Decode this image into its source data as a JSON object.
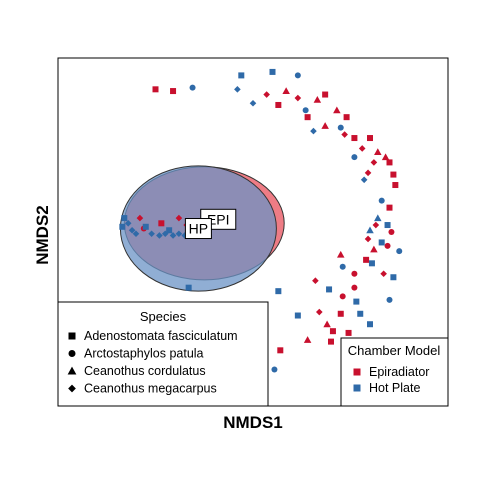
{
  "chart_data": {
    "type": "scatter",
    "xlabel": "NMDS1",
    "ylabel": "NMDS2",
    "xlim": [
      -1.0,
      1.0
    ],
    "ylim": [
      -1.0,
      1.0
    ],
    "grid": false,
    "colors": {
      "Epiradiator": "#c8102e",
      "Hot Plate": "#2f6aa8"
    },
    "series": [
      {
        "name": "Epiradiator",
        "color": "#c8102e",
        "ellipse": {
          "cx": -0.25,
          "cy": 0.05,
          "rx": 0.41,
          "ry": 0.325,
          "fill": "#e8505c"
        },
        "centroid_label": "EPI",
        "points": [
          {
            "x": -0.5,
            "y": 0.82,
            "shape": "square"
          },
          {
            "x": -0.41,
            "y": 0.81,
            "shape": "square"
          },
          {
            "x": 0.07,
            "y": 0.79,
            "shape": "diamond"
          },
          {
            "x": 0.17,
            "y": 0.81,
            "shape": "triangle"
          },
          {
            "x": 0.23,
            "y": 0.77,
            "shape": "diamond"
          },
          {
            "x": 0.13,
            "y": 0.73,
            "shape": "square"
          },
          {
            "x": 0.33,
            "y": 0.76,
            "shape": "triangle"
          },
          {
            "x": 0.37,
            "y": 0.79,
            "shape": "square"
          },
          {
            "x": 0.28,
            "y": 0.66,
            "shape": "square"
          },
          {
            "x": 0.43,
            "y": 0.7,
            "shape": "triangle"
          },
          {
            "x": 0.48,
            "y": 0.66,
            "shape": "square"
          },
          {
            "x": 0.37,
            "y": 0.61,
            "shape": "triangle"
          },
          {
            "x": 0.47,
            "y": 0.56,
            "shape": "diamond"
          },
          {
            "x": 0.52,
            "y": 0.54,
            "shape": "square"
          },
          {
            "x": 0.6,
            "y": 0.54,
            "shape": "square"
          },
          {
            "x": 0.56,
            "y": 0.48,
            "shape": "diamond"
          },
          {
            "x": 0.64,
            "y": 0.46,
            "shape": "triangle"
          },
          {
            "x": 0.68,
            "y": 0.43,
            "shape": "triangle"
          },
          {
            "x": 0.7,
            "y": 0.4,
            "shape": "square"
          },
          {
            "x": 0.62,
            "y": 0.4,
            "shape": "diamond"
          },
          {
            "x": 0.59,
            "y": 0.34,
            "shape": "diamond"
          },
          {
            "x": 0.72,
            "y": 0.33,
            "shape": "square"
          },
          {
            "x": 0.73,
            "y": 0.27,
            "shape": "square"
          },
          {
            "x": 0.7,
            "y": 0.14,
            "shape": "square"
          },
          {
            "x": 0.63,
            "y": 0.04,
            "shape": "diamond"
          },
          {
            "x": 0.71,
            "y": 0.0,
            "shape": "circle"
          },
          {
            "x": 0.59,
            "y": -0.04,
            "shape": "diamond"
          },
          {
            "x": 0.69,
            "y": -0.08,
            "shape": "circle"
          },
          {
            "x": 0.62,
            "y": -0.1,
            "shape": "triangle"
          },
          {
            "x": 0.45,
            "y": -0.13,
            "shape": "triangle"
          },
          {
            "x": 0.58,
            "y": -0.16,
            "shape": "square"
          },
          {
            "x": 0.52,
            "y": -0.24,
            "shape": "circle"
          },
          {
            "x": 0.67,
            "y": -0.24,
            "shape": "diamond"
          },
          {
            "x": 0.32,
            "y": -0.28,
            "shape": "diamond"
          },
          {
            "x": 0.52,
            "y": -0.32,
            "shape": "circle"
          },
          {
            "x": 0.46,
            "y": -0.37,
            "shape": "circle"
          },
          {
            "x": 0.34,
            "y": -0.46,
            "shape": "diamond"
          },
          {
            "x": 0.45,
            "y": -0.47,
            "shape": "square"
          },
          {
            "x": 0.38,
            "y": -0.53,
            "shape": "triangle"
          },
          {
            "x": 0.41,
            "y": -0.57,
            "shape": "square"
          },
          {
            "x": 0.49,
            "y": -0.58,
            "shape": "square"
          },
          {
            "x": 0.28,
            "y": -0.62,
            "shape": "triangle"
          },
          {
            "x": 0.4,
            "y": -0.63,
            "shape": "square"
          },
          {
            "x": 0.14,
            "y": -0.68,
            "shape": "square"
          },
          {
            "x": 0.02,
            "y": -0.68,
            "shape": "square"
          },
          {
            "x": -0.38,
            "y": 0.08,
            "shape": "diamond"
          },
          {
            "x": -0.34,
            "y": 0.04,
            "shape": "diamond"
          },
          {
            "x": -0.3,
            "y": 0.02,
            "shape": "diamond"
          },
          {
            "x": -0.56,
            "y": 0.02,
            "shape": "circle"
          },
          {
            "x": -0.58,
            "y": 0.08,
            "shape": "diamond"
          },
          {
            "x": -0.47,
            "y": 0.05,
            "shape": "square"
          }
        ]
      },
      {
        "name": "Hot Plate",
        "color": "#2f6aa8",
        "ellipse": {
          "cx": -0.28,
          "cy": 0.02,
          "rx": 0.4,
          "ry": 0.36,
          "fill": "#6b93c6"
        },
        "centroid_label": "HP",
        "points": [
          {
            "x": -0.06,
            "y": 0.9,
            "shape": "square"
          },
          {
            "x": 0.1,
            "y": 0.92,
            "shape": "square"
          },
          {
            "x": 0.23,
            "y": 0.9,
            "shape": "circle"
          },
          {
            "x": -0.31,
            "y": 0.83,
            "shape": "circle"
          },
          {
            "x": -0.08,
            "y": 0.82,
            "shape": "diamond"
          },
          {
            "x": 0.0,
            "y": 0.74,
            "shape": "diamond"
          },
          {
            "x": 0.27,
            "y": 0.7,
            "shape": "circle"
          },
          {
            "x": 0.45,
            "y": 0.6,
            "shape": "circle"
          },
          {
            "x": 0.31,
            "y": 0.58,
            "shape": "diamond"
          },
          {
            "x": 0.52,
            "y": 0.43,
            "shape": "circle"
          },
          {
            "x": 0.57,
            "y": 0.3,
            "shape": "diamond"
          },
          {
            "x": 0.66,
            "y": 0.18,
            "shape": "circle"
          },
          {
            "x": 0.64,
            "y": 0.08,
            "shape": "triangle"
          },
          {
            "x": 0.6,
            "y": 0.01,
            "shape": "triangle"
          },
          {
            "x": 0.69,
            "y": 0.04,
            "shape": "square"
          },
          {
            "x": 0.66,
            "y": -0.06,
            "shape": "square"
          },
          {
            "x": 0.75,
            "y": -0.11,
            "shape": "circle"
          },
          {
            "x": 0.61,
            "y": -0.18,
            "shape": "square"
          },
          {
            "x": 0.46,
            "y": -0.2,
            "shape": "circle"
          },
          {
            "x": 0.72,
            "y": -0.26,
            "shape": "square"
          },
          {
            "x": 0.39,
            "y": -0.33,
            "shape": "square"
          },
          {
            "x": 0.53,
            "y": -0.4,
            "shape": "square"
          },
          {
            "x": 0.55,
            "y": -0.47,
            "shape": "square"
          },
          {
            "x": 0.6,
            "y": -0.53,
            "shape": "square"
          },
          {
            "x": 0.7,
            "y": -0.39,
            "shape": "circle"
          },
          {
            "x": 0.13,
            "y": -0.34,
            "shape": "square"
          },
          {
            "x": 0.23,
            "y": -0.48,
            "shape": "square"
          },
          {
            "x": -0.33,
            "y": -0.32,
            "shape": "square"
          },
          {
            "x": 0.11,
            "y": -0.79,
            "shape": "circle"
          },
          {
            "x": -0.1,
            "y": -0.8,
            "shape": "circle"
          },
          {
            "x": -0.66,
            "y": 0.08,
            "shape": "square"
          },
          {
            "x": -0.67,
            "y": 0.03,
            "shape": "square"
          },
          {
            "x": -0.64,
            "y": 0.05,
            "shape": "diamond"
          },
          {
            "x": -0.62,
            "y": 0.01,
            "shape": "diamond"
          },
          {
            "x": -0.6,
            "y": -0.01,
            "shape": "diamond"
          },
          {
            "x": -0.52,
            "y": -0.01,
            "shape": "diamond"
          },
          {
            "x": -0.48,
            "y": -0.02,
            "shape": "diamond"
          },
          {
            "x": -0.45,
            "y": -0.01,
            "shape": "diamond"
          },
          {
            "x": -0.41,
            "y": -0.02,
            "shape": "diamond"
          },
          {
            "x": -0.38,
            "y": -0.01,
            "shape": "diamond"
          },
          {
            "x": -0.35,
            "y": -0.02,
            "shape": "diamond"
          },
          {
            "x": -0.26,
            "y": 0.0,
            "shape": "diamond"
          },
          {
            "x": -0.55,
            "y": 0.03,
            "shape": "square"
          },
          {
            "x": -0.43,
            "y": 0.01,
            "shape": "square"
          }
        ]
      }
    ],
    "legends": {
      "species": {
        "title": "Species",
        "position": "bottom-left",
        "entries": [
          {
            "label": "Adenostomata fasciculatum",
            "shape": "square"
          },
          {
            "label": "Arctostaphylos patula",
            "shape": "circle"
          },
          {
            "label": "Ceanothus cordulatus",
            "shape": "triangle"
          },
          {
            "label": "Ceanothus megacarpus",
            "shape": "diamond"
          }
        ]
      },
      "chamber": {
        "title": "Chamber Model",
        "position": "bottom-right",
        "entries": [
          {
            "label": "Epiradiator",
            "color": "#c8102e"
          },
          {
            "label": "Hot Plate",
            "color": "#2f6aa8"
          }
        ]
      }
    }
  }
}
